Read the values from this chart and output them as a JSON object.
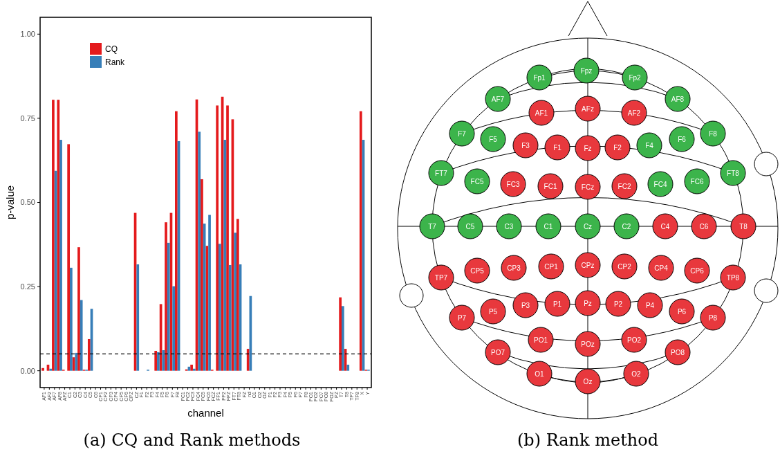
{
  "chart_data": [
    {
      "type": "bar",
      "title": "(a) CQ and Rank methods",
      "xlabel": "channel",
      "ylabel": "p-value",
      "categories": [
        "AF1",
        "AF2",
        "AF7",
        "AF8",
        "AFZ",
        "C1",
        "C2",
        "C3",
        "C4",
        "C5",
        "C6",
        "CP1",
        "CP2",
        "CP3",
        "CP4",
        "CP5",
        "CP6",
        "CPZ",
        "CZ",
        "F1",
        "F2",
        "F3",
        "F4",
        "F5",
        "F6",
        "F7",
        "F8",
        "FC1",
        "FC2",
        "FC3",
        "FC4",
        "FC5",
        "FC6",
        "FCZ",
        "FP1",
        "FP2",
        "FPZ",
        "FT7",
        "FT8",
        "FZ",
        "nd",
        "O1",
        "O2",
        "OZ",
        "P1",
        "P2",
        "P3",
        "P4",
        "P5",
        "P6",
        "P7",
        "P8",
        "PO1",
        "PO2",
        "PO7",
        "PO8",
        "POZ",
        "PZ",
        "T7",
        "T8",
        "TP7",
        "TP8",
        "X",
        "Y"
      ],
      "series": [
        {
          "name": "CQ",
          "color": "#e41a1c",
          "values": [
            0.008,
            0.018,
            0.805,
            0.805,
            0.003,
            0.673,
            0.04,
            0.367,
            0.003,
            0.094,
            0,
            0,
            0,
            0,
            0,
            0,
            0,
            0,
            0.469,
            0,
            0,
            0,
            0.059,
            0.198,
            0.441,
            0.469,
            0.771,
            0,
            0.004,
            0.018,
            0.806,
            0.569,
            0.371,
            0.003,
            0.788,
            0.814,
            0.788,
            0.747,
            0.451,
            0,
            0.065,
            0,
            0,
            0,
            0,
            0,
            0,
            0,
            0,
            0,
            0,
            0,
            0,
            0,
            0,
            0,
            0,
            0,
            0.218,
            0.065,
            0,
            0,
            0.771,
            0.003
          ]
        },
        {
          "name": "Rank",
          "color": "#377eb8",
          "values": [
            0,
            0.006,
            0.594,
            0.686,
            0,
            0.306,
            0.053,
            0.21,
            0.003,
            0.184,
            0,
            0,
            0,
            0,
            0,
            0,
            0,
            0,
            0.316,
            0,
            0.003,
            0,
            0.055,
            0.061,
            0.38,
            0.251,
            0.682,
            0,
            0.012,
            0.006,
            0.71,
            0.437,
            0.463,
            0,
            0.377,
            0.686,
            0.314,
            0.41,
            0.316,
            0,
            0.222,
            0,
            0,
            0,
            0,
            0,
            0,
            0,
            0,
            0,
            0,
            0,
            0,
            0,
            0,
            0,
            0,
            0,
            0.192,
            0.018,
            0,
            0,
            0.686,
            0.003
          ]
        }
      ],
      "ylim": [
        -0.05,
        1.05
      ],
      "yticks": [
        {
          "value": 0,
          "label": "0.00"
        },
        {
          "value": 0.25,
          "label": "0.25"
        },
        {
          "value": 0.5,
          "label": "0.50"
        },
        {
          "value": 0.75,
          "label": "0.75"
        },
        {
          "value": 1,
          "label": "1.00"
        }
      ],
      "ref_lines": [
        {
          "axis": "y",
          "value": 0.05,
          "color": "#000000",
          "line_style": "dashed"
        }
      ],
      "legend": "top left"
    },
    {
      "type": "other",
      "title": "(b) Rank method",
      "categories": [
        "Fp1",
        "Fpz",
        "Fp2",
        "AF7",
        "AF1",
        "AFz",
        "AF2",
        "AF8",
        "F7",
        "F5",
        "F3",
        "F1",
        "Fz",
        "F2",
        "F4",
        "F6",
        "F8",
        "FT7",
        "FC5",
        "FC3",
        "FC1",
        "FCz",
        "FC2",
        "FC4",
        "FC6",
        "FT8",
        "T7",
        "C5",
        "C3",
        "C1",
        "Cz",
        "C2",
        "C4",
        "C6",
        "T8",
        "TP7",
        "CP5",
        "CP3",
        "CP1",
        "CPz",
        "CP2",
        "CP4",
        "CP6",
        "TP8",
        "P7",
        "P5",
        "P3",
        "P1",
        "Pz",
        "P2",
        "P4",
        "P6",
        "P8",
        "PO7",
        "PO1",
        "POz",
        "PO2",
        "PO8",
        "O1",
        "Oz",
        "O2"
      ],
      "colors": [
        "#3cb44b",
        "#3cb44b",
        "#3cb44b",
        "#3cb44b",
        "#e8383d",
        "#e8383d",
        "#e8383d",
        "#3cb44b",
        "#3cb44b",
        "#3cb44b",
        "#e8383d",
        "#e8383d",
        "#e8383d",
        "#e8383d",
        "#3cb44b",
        "#3cb44b",
        "#3cb44b",
        "#3cb44b",
        "#3cb44b",
        "#e8383d",
        "#e8383d",
        "#e8383d",
        "#e8383d",
        "#3cb44b",
        "#3cb44b",
        "#3cb44b",
        "#3cb44b",
        "#3cb44b",
        "#3cb44b",
        "#3cb44b",
        "#3cb44b",
        "#3cb44b",
        "#e8383d",
        "#e8383d",
        "#e8383d",
        "#e8383d",
        "#e8383d",
        "#e8383d",
        "#e8383d",
        "#e8383d",
        "#e8383d",
        "#e8383d",
        "#e8383d",
        "#e8383d",
        "#e8383d",
        "#e8383d",
        "#e8383d",
        "#e8383d",
        "#e8383d",
        "#e8383d",
        "#e8383d",
        "#e8383d",
        "#e8383d",
        "#e8383d",
        "#e8383d",
        "#e8383d",
        "#e8383d",
        "#e8383d",
        "#e8383d",
        "#e8383d",
        "#e8383d"
      ]
    }
  ]
}
